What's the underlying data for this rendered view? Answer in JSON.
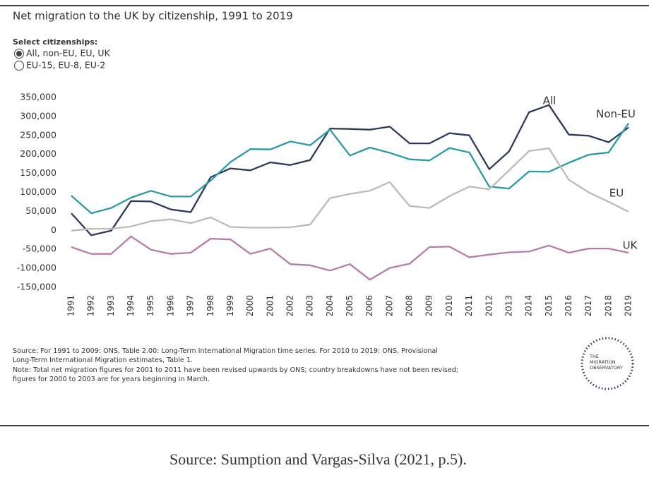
{
  "chart_data": {
    "type": "line",
    "title": "Net migration to the UK by citizenship, 1991 to 2019",
    "categories": [
      "1991",
      "1992",
      "1993",
      "1994",
      "1995",
      "1996",
      "1997",
      "1998",
      "1999",
      "2000",
      "2001",
      "2002",
      "2003",
      "2004",
      "2005",
      "2006",
      "2007",
      "2008",
      "2009",
      "2010",
      "2011",
      "2012",
      "2013",
      "2014",
      "2015",
      "2016",
      "2017",
      "2018",
      "2019"
    ],
    "series": [
      {
        "name": "All",
        "color": "#2b3a5c",
        "values": [
          45000,
          -13000,
          -1000,
          77000,
          76000,
          55000,
          48000,
          140000,
          163000,
          158000,
          179000,
          172000,
          185000,
          268000,
          267000,
          265000,
          273000,
          229000,
          229000,
          256000,
          250000,
          161000,
          208000,
          311000,
          330000,
          252000,
          249000,
          232000,
          271000
        ]
      },
      {
        "name": "Non-EU",
        "color": "#2a9aa8",
        "values": [
          91000,
          45000,
          59000,
          86000,
          104000,
          89000,
          89000,
          131000,
          180000,
          214000,
          213000,
          234000,
          224000,
          265000,
          197000,
          218000,
          204000,
          187000,
          184000,
          217000,
          205000,
          115000,
          110000,
          155000,
          154000,
          178000,
          199000,
          205000,
          282000
        ]
      },
      {
        "name": "EU",
        "color": "#c0b9b3",
        "values": [
          -1000,
          4000,
          4000,
          10000,
          24000,
          29000,
          19000,
          34000,
          9000,
          7000,
          7000,
          8000,
          15000,
          85000,
          96000,
          104000,
          127000,
          64000,
          59000,
          90000,
          115000,
          108000,
          158000,
          209000,
          216000,
          133000,
          100000,
          75000,
          49000
        ]
      },
      {
        "name": "UK",
        "color": "#b87aa8",
        "values": [
          -44000,
          -62000,
          -62000,
          -16000,
          -51000,
          -62000,
          -59000,
          -22000,
          -24000,
          -62000,
          -48000,
          -89000,
          -92000,
          -106000,
          -89000,
          -130000,
          -99000,
          -88000,
          -44000,
          -43000,
          -71000,
          -64000,
          -58000,
          -56000,
          -40000,
          -59000,
          -48000,
          -48000,
          -59000
        ]
      }
    ],
    "ylim": [
      -150000,
      350000
    ],
    "yticks": [
      {
        "value": -150000,
        "label": "-150,000"
      },
      {
        "value": -100000,
        "label": "-100,000"
      },
      {
        "value": -50000,
        "label": "-50,000"
      },
      0,
      {
        "value": 50000,
        "label": "50,000"
      },
      {
        "value": 100000,
        "label": "100,000"
      },
      {
        "value": 150000,
        "label": "150,000"
      },
      {
        "value": 200000,
        "label": "200,000"
      },
      {
        "value": 250000,
        "label": "250,000"
      },
      {
        "value": 300000,
        "label": "300,000"
      },
      {
        "value": 350000,
        "label": "350,000"
      }
    ],
    "grid": false,
    "legend": "direct"
  },
  "controls": {
    "label": "Select citizenships:",
    "options": [
      "All, non-EU, EU, UK",
      "EU-15, EU-8, EU-2"
    ]
  },
  "notes": [
    "Source: For 1991 to 2009: ONS, Table 2.00: Long-Term International Migration time series. For 2010 to 2019: ONS, Provisional",
    "Long-Term International Migration estimates, Table 1.",
    "Note: Total net migration figures for 2001 to 2011 have been revised upwards by ONS; country breakdowns have not been revised;",
    "figures for 2000 to 2003 are for years beginning in March."
  ],
  "logo": [
    "THE",
    "MIGRATION",
    "OBSERVATORY"
  ],
  "caption": "Source: Sumption and Vargas-Silva (2021, p.5)."
}
